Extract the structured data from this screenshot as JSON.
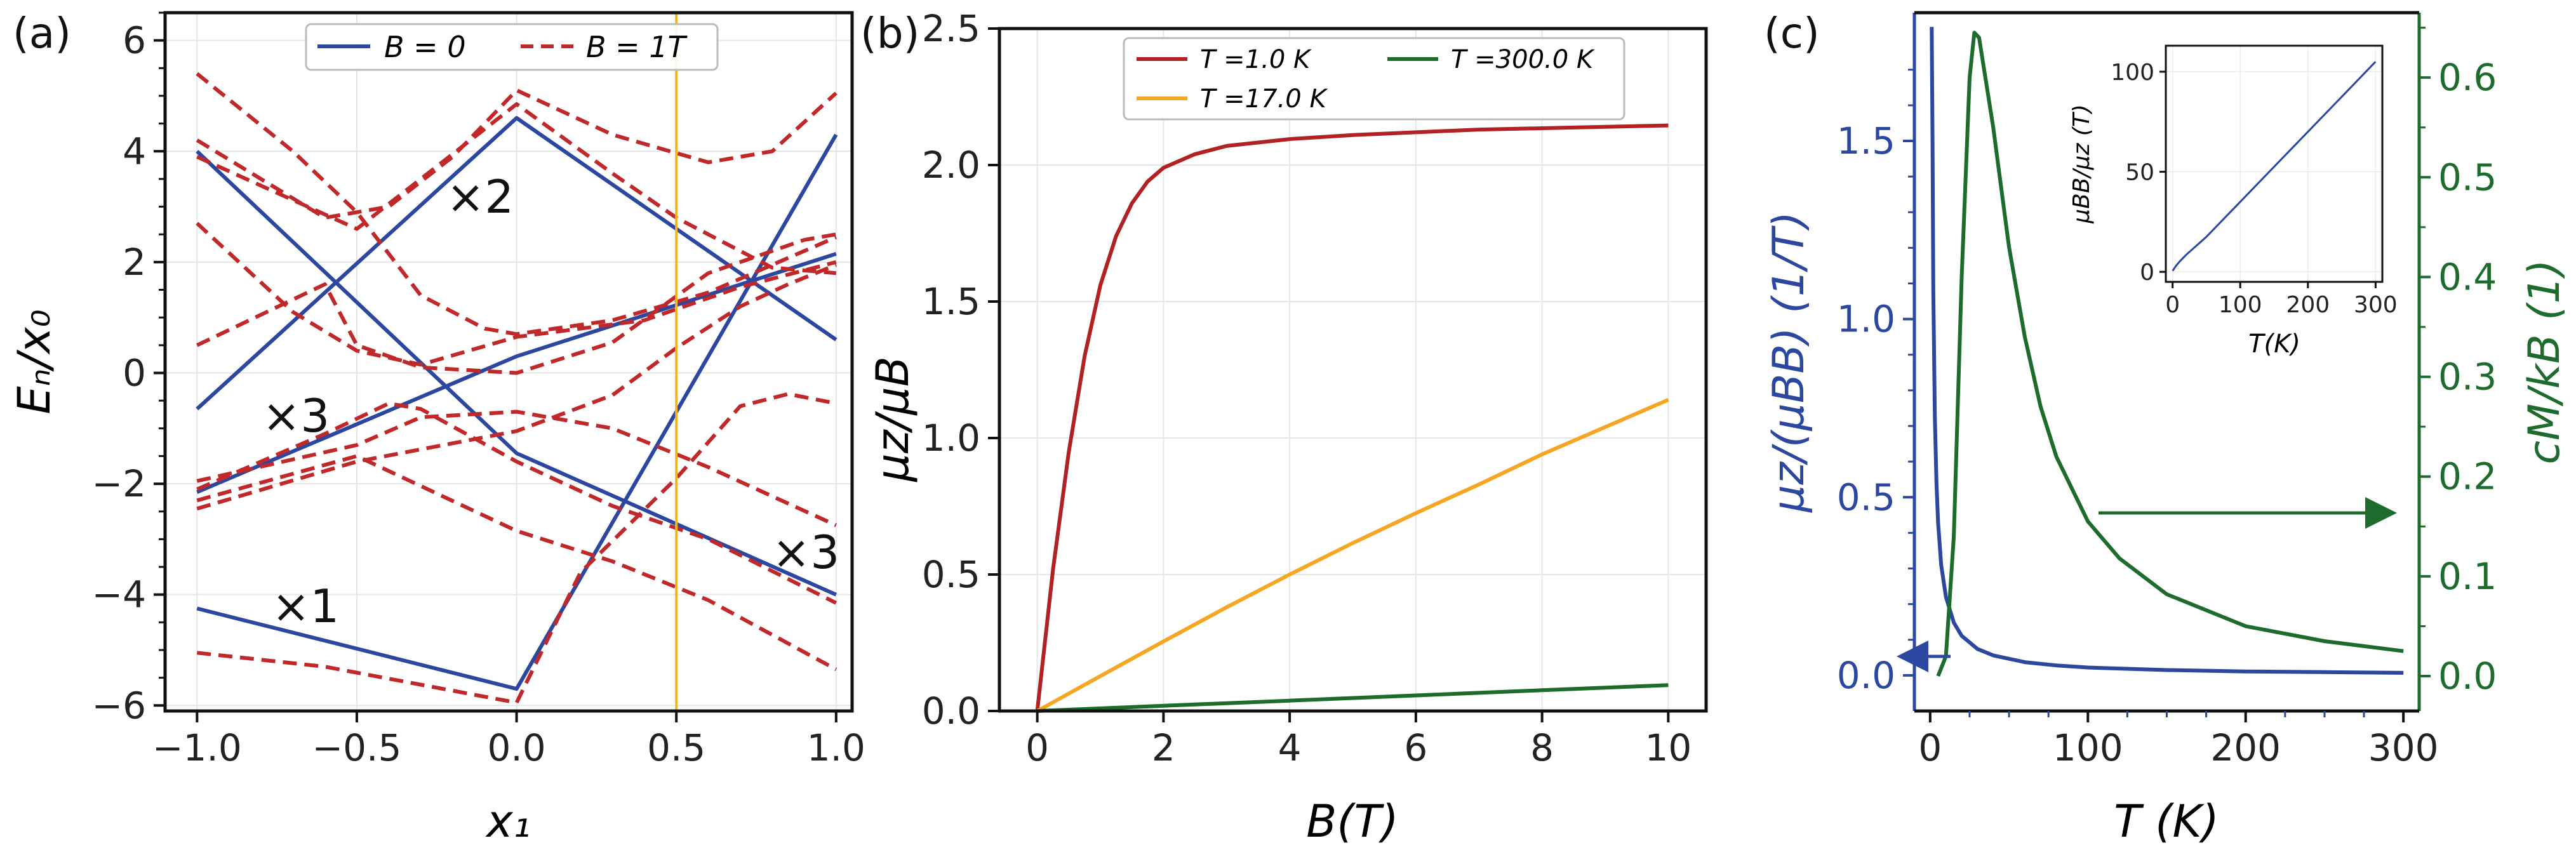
{
  "chart_data": [
    {
      "type": "line",
      "panel_label": "(a)",
      "xlabel": "x₁",
      "ylabel": "Eₙ/x₀",
      "xlim": [
        -1.1,
        1.05
      ],
      "ylim": [
        -6.1,
        6.5
      ],
      "xticks": [
        "−1.0",
        "−0.5",
        "0.0",
        "0.5",
        "1.0"
      ],
      "yticks": [
        "−6",
        "−4",
        "−2",
        "0",
        "2",
        "4",
        "6"
      ],
      "legend": [
        "B = 0",
        "B = 1T"
      ],
      "annotations": [
        "×2",
        "×3",
        "×3",
        "×1"
      ],
      "vline_x": 0.5,
      "series": [
        {
          "name": "B = 0",
          "style": "solid",
          "color": "#2b47a0",
          "lines": [
            [
              [
                -1,
                4.0
              ],
              [
                0,
                -1.45
              ],
              [
                1,
                -4.0
              ]
            ],
            [
              [
                -1,
                -0.65
              ],
              [
                0,
                4.6
              ],
              [
                1,
                0.6
              ]
            ],
            [
              [
                -1,
                -2.15
              ],
              [
                0,
                0.3
              ],
              [
                1,
                2.15
              ]
            ],
            [
              [
                -1,
                -4.25
              ],
              [
                0,
                -5.7
              ],
              [
                1,
                4.3
              ]
            ]
          ]
        },
        {
          "name": "B = 1T",
          "style": "dashed",
          "color": "#c0282a",
          "lines": [
            [
              [
                -1,
                5.4
              ],
              [
                -0.7,
                4.0
              ],
              [
                -0.5,
                2.9
              ],
              [
                -0.3,
                1.4
              ],
              [
                -0.1,
                0.8
              ],
              [
                0,
                0.7
              ],
              [
                0.3,
                0.95
              ],
              [
                0.6,
                1.45
              ],
              [
                1,
                2.45
              ]
            ],
            [
              [
                -1,
                4.2
              ],
              [
                -0.6,
                2.8
              ],
              [
                -0.4,
                3.0
              ],
              [
                -0.2,
                3.9
              ],
              [
                0,
                5.1
              ],
              [
                0.3,
                4.3
              ],
              [
                0.6,
                3.8
              ],
              [
                0.8,
                4.0
              ],
              [
                1,
                5.05
              ]
            ],
            [
              [
                -1,
                3.9
              ],
              [
                -0.5,
                2.6
              ],
              [
                0,
                4.85
              ],
              [
                0.3,
                3.6
              ],
              [
                0.5,
                2.8
              ],
              [
                0.8,
                1.9
              ],
              [
                1,
                1.8
              ]
            ],
            [
              [
                -1,
                2.7
              ],
              [
                -0.7,
                1.1
              ],
              [
                -0.5,
                0.4
              ],
              [
                -0.3,
                0.15
              ],
              [
                0,
                0.65
              ],
              [
                0.4,
                0.95
              ],
              [
                0.7,
                1.55
              ],
              [
                1,
                2.0
              ]
            ],
            [
              [
                -1,
                0.5
              ],
              [
                -0.6,
                1.6
              ],
              [
                -0.5,
                0.5
              ],
              [
                -0.3,
                0.1
              ],
              [
                0,
                0.0
              ],
              [
                0.3,
                0.55
              ],
              [
                0.6,
                1.8
              ],
              [
                0.9,
                2.4
              ],
              [
                1,
                2.5
              ]
            ],
            [
              [
                -1,
                -1.95
              ],
              [
                -0.5,
                -1.3
              ],
              [
                -0.3,
                -0.8
              ],
              [
                0,
                -0.7
              ],
              [
                0.3,
                -1.0
              ],
              [
                0.6,
                -1.7
              ],
              [
                1,
                -2.75
              ]
            ],
            [
              [
                -1,
                -2.1
              ],
              [
                -0.6,
                -1.1
              ],
              [
                -0.4,
                -0.55
              ],
              [
                -0.3,
                -0.65
              ],
              [
                0,
                -1.6
              ],
              [
                0.3,
                -2.4
              ],
              [
                0.6,
                -3.0
              ],
              [
                1,
                -4.15
              ]
            ],
            [
              [
                -1,
                -2.45
              ],
              [
                -0.5,
                -1.6
              ],
              [
                0,
                -1.05
              ],
              [
                0.3,
                -0.4
              ],
              [
                0.5,
                0.45
              ],
              [
                0.7,
                1.2
              ],
              [
                0.85,
                1.6
              ],
              [
                1,
                1.95
              ]
            ],
            [
              [
                -1,
                -2.3
              ],
              [
                -0.5,
                -1.5
              ],
              [
                0,
                -2.85
              ],
              [
                0.3,
                -3.4
              ],
              [
                0.6,
                -4.1
              ],
              [
                1,
                -5.35
              ]
            ],
            [
              [
                -1,
                -5.05
              ],
              [
                -0.6,
                -5.3
              ],
              [
                0,
                -5.95
              ],
              [
                0.2,
                -3.6
              ],
              [
                0.5,
                -1.9
              ],
              [
                0.7,
                -0.6
              ],
              [
                0.85,
                -0.38
              ],
              [
                1,
                -0.55
              ]
            ]
          ]
        }
      ]
    },
    {
      "type": "line",
      "panel_label": "(b)",
      "xlabel": "B(T)",
      "ylabel": "μz/μB",
      "xlim": [
        -0.6,
        10.6
      ],
      "ylim": [
        0,
        2.5
      ],
      "xticks": [
        "0",
        "2",
        "4",
        "6",
        "8",
        "10"
      ],
      "yticks": [
        "0.0",
        "0.5",
        "1.0",
        "1.5",
        "2.0",
        "2.5"
      ],
      "legend": [
        "T =1.0 K",
        "T =300.0 K",
        "T =17.0 K"
      ],
      "series": [
        {
          "name": "T =1.0 K",
          "color": "#b22222",
          "x": [
            0,
            0.25,
            0.5,
            0.75,
            1,
            1.25,
            1.5,
            1.75,
            2,
            2.5,
            3,
            4,
            5,
            6,
            7,
            8,
            9,
            10
          ],
          "y": [
            0,
            0.52,
            0.95,
            1.3,
            1.56,
            1.74,
            1.86,
            1.94,
            1.99,
            2.04,
            2.07,
            2.095,
            2.11,
            2.12,
            2.13,
            2.135,
            2.14,
            2.145
          ]
        },
        {
          "name": "T =17.0 K",
          "color": "#f5a623",
          "x": [
            0,
            1,
            2,
            3,
            4,
            5,
            6,
            7,
            8,
            9,
            10
          ],
          "y": [
            0,
            0.128,
            0.255,
            0.38,
            0.5,
            0.615,
            0.725,
            0.83,
            0.94,
            1.04,
            1.14
          ]
        },
        {
          "name": "T =300.0 K",
          "color": "#1e6b2e",
          "x": [
            0,
            2,
            4,
            6,
            8,
            10
          ],
          "y": [
            0,
            0.019,
            0.038,
            0.057,
            0.076,
            0.095
          ]
        }
      ]
    },
    {
      "type": "line",
      "panel_label": "(c)",
      "xlabel": "T (K)",
      "ylabel_left": "μz/(μBB) (1/T)",
      "ylabel_right": "cM/kB (1)",
      "xlim": [
        -10,
        310
      ],
      "ylim_left": [
        -0.1,
        1.86
      ],
      "ylim_right": [
        -0.035,
        0.665
      ],
      "xticks": [
        "0",
        "100",
        "200",
        "300"
      ],
      "yticks_left": [
        "0.0",
        "0.5",
        "1.0",
        "1.5"
      ],
      "yticks_right": [
        "0.0",
        "0.1",
        "0.2",
        "0.3",
        "0.4",
        "0.5",
        "0.6"
      ],
      "series": [
        {
          "name": "μz/(μBB)",
          "axis": "left",
          "color": "#2b47a0",
          "x": [
            1,
            1.5,
            2,
            3,
            4,
            5,
            7,
            10,
            15,
            20,
            30,
            40,
            60,
            80,
            100,
            150,
            200,
            250,
            300
          ],
          "y": [
            1.82,
            1.5,
            1.08,
            0.72,
            0.54,
            0.43,
            0.31,
            0.22,
            0.148,
            0.111,
            0.074,
            0.056,
            0.037,
            0.028,
            0.022,
            0.015,
            0.011,
            0.009,
            0.007
          ]
        },
        {
          "name": "cM/kB",
          "axis": "right",
          "color": "#1e6b2e",
          "x": [
            5,
            10,
            15,
            20,
            25,
            28,
            31,
            35,
            40,
            45,
            50,
            60,
            70,
            80,
            100,
            120,
            150,
            200,
            250,
            300
          ],
          "y": [
            0.0,
            0.02,
            0.14,
            0.4,
            0.6,
            0.645,
            0.64,
            0.6,
            0.55,
            0.49,
            0.43,
            0.34,
            0.27,
            0.22,
            0.155,
            0.118,
            0.082,
            0.05,
            0.035,
            0.025
          ]
        }
      ],
      "inset": {
        "xlabel": "T(K)",
        "ylabel": "μBB/μz (T)",
        "xlim": [
          -10,
          310
        ],
        "ylim": [
          -5,
          113
        ],
        "xticks": [
          "0",
          "100",
          "200",
          "300"
        ],
        "yticks": [
          "0",
          "50",
          "100"
        ],
        "color": "#2b47a0",
        "x": [
          0,
          5,
          10,
          20,
          50,
          100,
          150,
          200,
          250,
          300
        ],
        "y": [
          0.5,
          3,
          5,
          8.5,
          17.5,
          35,
          52.5,
          70,
          87.5,
          105
        ]
      }
    }
  ]
}
